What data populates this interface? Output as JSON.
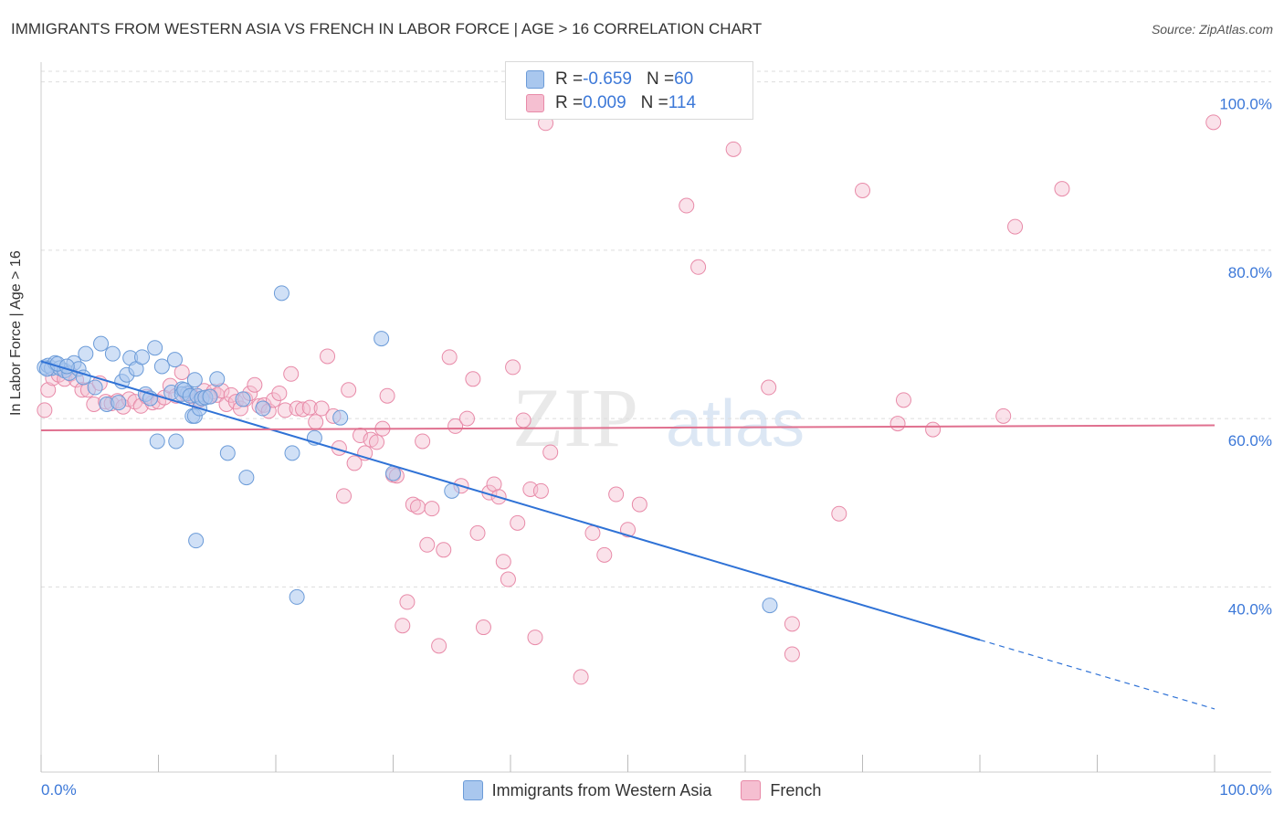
{
  "title": "IMMIGRANTS FROM WESTERN ASIA VS FRENCH IN LABOR FORCE | AGE > 16 CORRELATION CHART",
  "source": "Source: ZipAtlas.com",
  "watermark": {
    "zip": "ZIP",
    "atlas": "atlas"
  },
  "legend_top": {
    "rows": [
      {
        "r_label": "R = ",
        "r_value": "-0.659",
        "n_label": "N = ",
        "n_value": "60"
      },
      {
        "r_label": "R = ",
        "r_value": "0.009",
        "n_label": "N = ",
        "n_value": "114"
      }
    ]
  },
  "colors": {
    "blue_fill": "#a9c7ee",
    "blue_stroke": "#6b9bd8",
    "blue_line": "#2f72d6",
    "pink_fill": "#f5bfd1",
    "pink_stroke": "#e88aa8",
    "pink_line": "#e0708f",
    "tick_label": "#3c78d8",
    "grid": "#dddddd"
  },
  "chart_data": {
    "type": "scatter",
    "title": "IMMIGRANTS FROM WESTERN ASIA VS FRENCH IN LABOR FORCE | AGE > 16 CORRELATION CHART",
    "xlabel": "",
    "ylabel": "In Labor Force | Age > 16",
    "xlim": [
      0,
      100
    ],
    "ylim": [
      18,
      103
    ],
    "x_tick_labels": [
      "0.0%",
      "100.0%"
    ],
    "y_ticks": [
      {
        "value": 40,
        "label": "40.0%"
      },
      {
        "value": 60,
        "label": "60.0%"
      },
      {
        "value": 80,
        "label": "80.0%"
      },
      {
        "value": 100,
        "label": "100.0%"
      }
    ],
    "grid": "horizontal dashed",
    "legend_position": "bottom",
    "series": [
      {
        "name": "Immigrants from Western Asia",
        "color": "#a9c7ee",
        "r": -0.659,
        "n": 60,
        "trend": {
          "x0": 0,
          "y0": 66.8,
          "x1": 80,
          "y1": 33.7,
          "dashed_to_x": 100,
          "dashed_to_y": 25.5
        },
        "points": [
          [
            0.3,
            66.1
          ],
          [
            0.6,
            66.3
          ],
          [
            0.9,
            66.0
          ],
          [
            1.2,
            66.6
          ],
          [
            1.6,
            66.0
          ],
          [
            2.0,
            65.7
          ],
          [
            2.4,
            65.4
          ],
          [
            2.8,
            66.6
          ],
          [
            3.2,
            65.9
          ],
          [
            3.6,
            64.9
          ],
          [
            0.5,
            65.9
          ],
          [
            1.4,
            66.5
          ],
          [
            2.2,
            66.2
          ],
          [
            3.8,
            67.7
          ],
          [
            4.6,
            63.7
          ],
          [
            5.1,
            68.9
          ],
          [
            5.6,
            61.7
          ],
          [
            6.1,
            67.7
          ],
          [
            6.6,
            61.9
          ],
          [
            6.9,
            64.4
          ],
          [
            7.3,
            65.2
          ],
          [
            7.6,
            67.2
          ],
          [
            8.1,
            65.9
          ],
          [
            8.6,
            67.3
          ],
          [
            8.9,
            62.9
          ],
          [
            9.3,
            62.4
          ],
          [
            9.7,
            68.4
          ],
          [
            9.9,
            57.3
          ],
          [
            10.3,
            66.2
          ],
          [
            11.1,
            63.1
          ],
          [
            11.4,
            67.0
          ],
          [
            11.5,
            57.3
          ],
          [
            12.0,
            63.5
          ],
          [
            12.5,
            63.0
          ],
          [
            12.0,
            62.9
          ],
          [
            12.2,
            63.4
          ],
          [
            12.7,
            62.7
          ],
          [
            12.9,
            60.3
          ],
          [
            13.1,
            60.3
          ],
          [
            13.1,
            64.6
          ],
          [
            13.3,
            62.7
          ],
          [
            13.2,
            45.5
          ],
          [
            13.5,
            61.2
          ],
          [
            13.7,
            62.4
          ],
          [
            14.0,
            62.5
          ],
          [
            14.4,
            62.6
          ],
          [
            15.0,
            64.7
          ],
          [
            15.9,
            55.9
          ],
          [
            17.2,
            62.3
          ],
          [
            17.5,
            53.0
          ],
          [
            18.9,
            61.2
          ],
          [
            20.5,
            74.9
          ],
          [
            21.4,
            55.9
          ],
          [
            21.8,
            38.8
          ],
          [
            23.3,
            57.7
          ],
          [
            25.5,
            60.1
          ],
          [
            29.0,
            69.5
          ],
          [
            30.0,
            53.5
          ],
          [
            35.0,
            51.4
          ],
          [
            62.1,
            37.8
          ]
        ]
      },
      {
        "name": "French",
        "color": "#f5bfd1",
        "r": 0.009,
        "n": 114,
        "trend": {
          "x0": 0,
          "y0": 58.6,
          "x1": 100,
          "y1": 59.2
        },
        "points": [
          [
            0.3,
            61.0
          ],
          [
            0.6,
            63.4
          ],
          [
            1.0,
            64.8
          ],
          [
            1.5,
            65.2
          ],
          [
            2.0,
            64.7
          ],
          [
            2.5,
            65.3
          ],
          [
            3.0,
            64.6
          ],
          [
            3.5,
            63.4
          ],
          [
            4.0,
            63.4
          ],
          [
            4.5,
            61.7
          ],
          [
            5.0,
            64.2
          ],
          [
            5.5,
            62.0
          ],
          [
            6.0,
            61.8
          ],
          [
            6.5,
            62.1
          ],
          [
            7.0,
            61.4
          ],
          [
            7.5,
            62.3
          ],
          [
            8.0,
            62.0
          ],
          [
            8.5,
            61.5
          ],
          [
            9.0,
            62.6
          ],
          [
            9.5,
            61.9
          ],
          [
            10.0,
            62.0
          ],
          [
            10.5,
            62.5
          ],
          [
            11.0,
            63.9
          ],
          [
            11.5,
            62.7
          ],
          [
            12.0,
            65.5
          ],
          [
            12.4,
            62.9
          ],
          [
            12.8,
            62.7
          ],
          [
            13.2,
            62.1
          ],
          [
            13.5,
            62.2
          ],
          [
            13.9,
            63.3
          ],
          [
            14.3,
            62.6
          ],
          [
            14.7,
            63.2
          ],
          [
            15.0,
            62.8
          ],
          [
            15.4,
            63.3
          ],
          [
            15.8,
            61.7
          ],
          [
            16.2,
            62.8
          ],
          [
            16.6,
            62.0
          ],
          [
            17.0,
            61.2
          ],
          [
            17.4,
            62.3
          ],
          [
            17.8,
            63.0
          ],
          [
            18.2,
            64.0
          ],
          [
            18.6,
            61.5
          ],
          [
            19.0,
            61.6
          ],
          [
            19.4,
            60.9
          ],
          [
            19.8,
            62.2
          ],
          [
            20.3,
            63.0
          ],
          [
            20.8,
            61.0
          ],
          [
            21.3,
            65.3
          ],
          [
            21.8,
            61.2
          ],
          [
            22.3,
            61.1
          ],
          [
            22.9,
            61.3
          ],
          [
            23.4,
            59.6
          ],
          [
            23.9,
            61.2
          ],
          [
            24.4,
            67.4
          ],
          [
            24.9,
            60.3
          ],
          [
            25.4,
            56.5
          ],
          [
            25.8,
            50.8
          ],
          [
            26.2,
            63.4
          ],
          [
            26.7,
            54.7
          ],
          [
            27.2,
            58.0
          ],
          [
            27.6,
            55.9
          ],
          [
            28.1,
            57.5
          ],
          [
            28.6,
            57.2
          ],
          [
            29.1,
            58.8
          ],
          [
            29.5,
            62.7
          ],
          [
            30.0,
            53.3
          ],
          [
            30.3,
            53.2
          ],
          [
            30.8,
            35.4
          ],
          [
            31.2,
            38.2
          ],
          [
            31.7,
            49.8
          ],
          [
            32.1,
            49.5
          ],
          [
            32.5,
            57.3
          ],
          [
            32.9,
            45.0
          ],
          [
            33.3,
            49.3
          ],
          [
            33.9,
            33.0
          ],
          [
            34.3,
            44.4
          ],
          [
            34.8,
            67.3
          ],
          [
            35.3,
            59.1
          ],
          [
            35.8,
            52.0
          ],
          [
            36.3,
            60.0
          ],
          [
            36.8,
            64.7
          ],
          [
            37.2,
            46.4
          ],
          [
            37.7,
            35.2
          ],
          [
            38.2,
            51.2
          ],
          [
            38.6,
            52.2
          ],
          [
            39.0,
            50.7
          ],
          [
            39.4,
            43.0
          ],
          [
            39.8,
            40.9
          ],
          [
            40.2,
            66.1
          ],
          [
            40.6,
            47.6
          ],
          [
            41.1,
            59.8
          ],
          [
            41.7,
            51.6
          ],
          [
            42.1,
            34.0
          ],
          [
            42.6,
            51.4
          ],
          [
            43.0,
            95.1
          ],
          [
            43.4,
            56.0
          ],
          [
            46.0,
            29.3
          ],
          [
            47.0,
            46.4
          ],
          [
            48.0,
            43.8
          ],
          [
            49.0,
            51.0
          ],
          [
            50.0,
            46.8
          ],
          [
            51.0,
            49.8
          ],
          [
            55.0,
            85.3
          ],
          [
            56.0,
            78.0
          ],
          [
            59.0,
            92.0
          ],
          [
            62.0,
            63.7
          ],
          [
            64.0,
            35.6
          ],
          [
            64.0,
            32.0
          ],
          [
            68.0,
            48.7
          ],
          [
            70.0,
            87.1
          ],
          [
            73.0,
            59.4
          ],
          [
            73.5,
            62.2
          ],
          [
            76.0,
            58.7
          ],
          [
            82.0,
            60.3
          ],
          [
            83.0,
            82.8
          ],
          [
            87.0,
            87.3
          ],
          [
            99.9,
            95.2
          ]
        ]
      }
    ]
  },
  "legend_bottom": [
    {
      "label": "Immigrants from Western Asia"
    },
    {
      "label": "French"
    }
  ]
}
